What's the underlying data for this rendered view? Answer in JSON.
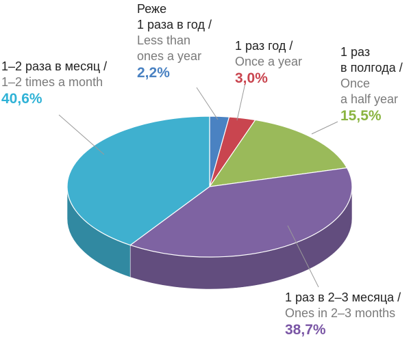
{
  "chart_data": {
    "type": "pie",
    "style": "3d",
    "title": "",
    "slices": [
      {
        "ru": [
          "Реже",
          "1 раза в год /"
        ],
        "en": [
          "Less than",
          "ones a year"
        ],
        "label": "2,2%",
        "value": 2.2,
        "color": "#4a82c2"
      },
      {
        "ru": [
          "1 раз год /"
        ],
        "en": [
          "Once a year"
        ],
        "label": "3,0%",
        "value": 3.0,
        "color": "#c9454f"
      },
      {
        "ru": [
          "1 раз",
          "в полгода /"
        ],
        "en": [
          "Once",
          "a half year"
        ],
        "label": "15,5%",
        "value": 15.5,
        "color": "#9aba5a"
      },
      {
        "ru": [
          "1 раз в 2–3 месяца /"
        ],
        "en": [
          "Ones in 2–3 months"
        ],
        "label": "38,7%",
        "value": 38.7,
        "color": "#7e63a2"
      },
      {
        "ru": [
          "1–2 раза в месяц /"
        ],
        "en": [
          "1–2 times a month"
        ],
        "label": "40,6%",
        "value": 40.6,
        "color": "#3fb0cf"
      }
    ]
  }
}
